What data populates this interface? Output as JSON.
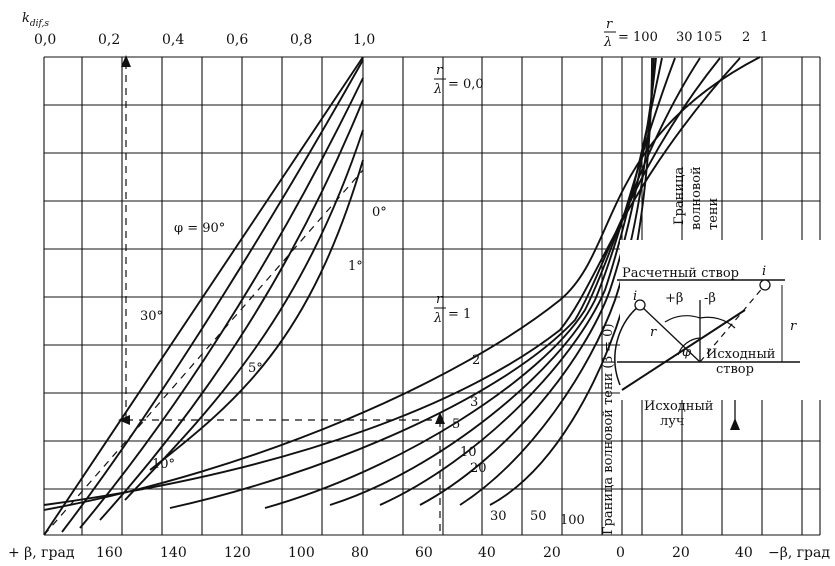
{
  "chart_data": {
    "type": "line",
    "ylabel_main": "k",
    "ylabel_sub": "dif,s",
    "top_axis": {
      "ticks": [
        "0,0",
        "0,2",
        "0,4",
        "0,6",
        "0,8",
        "1,0"
      ],
      "values": [
        0,
        0.2,
        0.4,
        0.6,
        0.8,
        1.0
      ]
    },
    "bottom_axis": {
      "left_label": "+ β, град",
      "right_label": "−β, град",
      "ticks_plus": [
        "160",
        "140",
        "120",
        "100",
        "80",
        "60",
        "40",
        "20"
      ],
      "tick_zero": "0",
      "ticks_minus": [
        "20",
        "40"
      ]
    },
    "annotations": {
      "phi90": "φ = 90°",
      "deg0": "0°",
      "deg1": "1°",
      "deg5": "5°",
      "deg10": "10°",
      "deg30": "30°",
      "r_num": "r",
      "lambda": "λ",
      "eq_00": "= 0,0",
      "eq_1": "= 1",
      "eq_100": "= 100",
      "top_labels": [
        "30",
        "10",
        "5",
        "2",
        "1"
      ],
      "curve_labels": [
        "2",
        "3",
        "5",
        "10",
        "20",
        "30",
        "50",
        "100"
      ],
      "shadow_vertical": "Граница волновой тени (β = 0)",
      "shadow_top_1": "Граница",
      "shadow_top_2": "волновой",
      "shadow_top_3": "тени"
    },
    "inset": {
      "design_line": "Расчетный створ",
      "initial_line_1": "Исходный",
      "initial_line_2": "створ",
      "initial_ray_1": "Исходный",
      "initial_ray_2": "луч",
      "plus_beta": "+β",
      "minus_beta": "-β",
      "phi": "φ",
      "r": "r",
      "i": "i"
    }
  }
}
